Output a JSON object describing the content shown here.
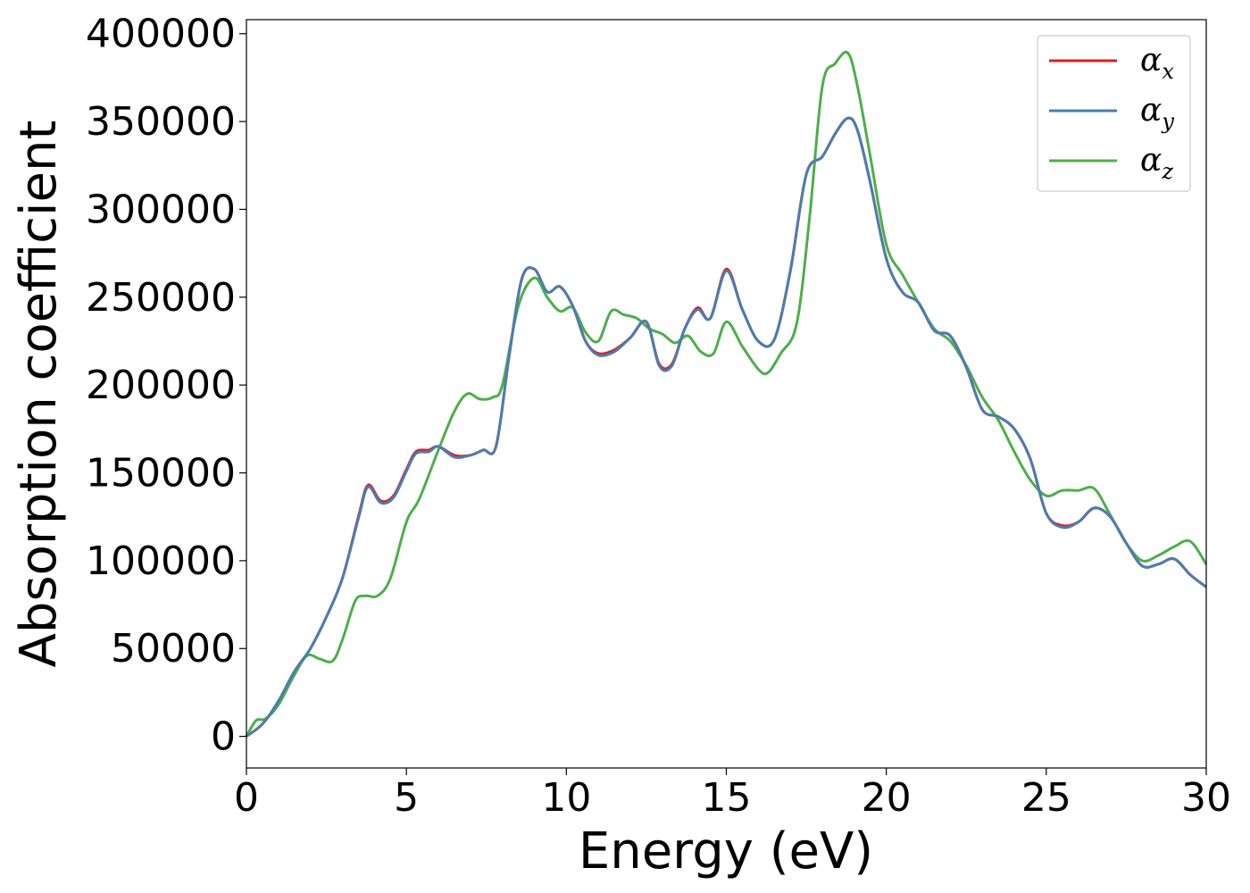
{
  "chart_data": {
    "type": "line",
    "xlabel": "Energy (eV)",
    "ylabel": "Absorption coefficient",
    "xlim": [
      0,
      30
    ],
    "ylim": [
      -18000,
      408000
    ],
    "xticks": [
      0,
      5,
      10,
      15,
      20,
      25,
      30
    ],
    "xtick_labels": [
      "0",
      "5",
      "10",
      "15",
      "20",
      "25",
      "30"
    ],
    "yticks": [
      0,
      50000,
      100000,
      150000,
      200000,
      250000,
      300000,
      350000,
      400000
    ],
    "ytick_labels": [
      "0",
      "50000",
      "100000",
      "150000",
      "200000",
      "250000",
      "300000",
      "350000",
      "400000"
    ],
    "grid": false,
    "legend_position": "top-right",
    "series": [
      {
        "name": "αx",
        "legend_base": "α",
        "legend_sub": "x",
        "color": "#e41a1c",
        "x": [
          0,
          0.5,
          1,
          1.5,
          2,
          2.5,
          3,
          3.5,
          3.8,
          4.2,
          4.6,
          5,
          5.3,
          5.7,
          6,
          6.5,
          7,
          7.4,
          7.8,
          8.2,
          8.6,
          9,
          9.4,
          9.8,
          10.2,
          10.6,
          11,
          11.5,
          12,
          12.5,
          12.9,
          13.3,
          13.7,
          14.1,
          14.5,
          15,
          15.5,
          16,
          16.5,
          17,
          17.5,
          18,
          18.4,
          18.8,
          19.1,
          19.5,
          20,
          20.5,
          21,
          21.5,
          22,
          22.5,
          23,
          23.5,
          24,
          24.5,
          25,
          25.5,
          26,
          26.5,
          27,
          27.5,
          28,
          28.5,
          29,
          29.5,
          30
        ],
        "y": [
          0,
          7000,
          20000,
          37000,
          50000,
          68000,
          90000,
          125000,
          143000,
          134000,
          137000,
          152000,
          162000,
          163000,
          165000,
          160000,
          160000,
          163000,
          165000,
          215000,
          260000,
          266000,
          253000,
          256000,
          245000,
          225000,
          218000,
          220000,
          227000,
          236000,
          212000,
          212000,
          232000,
          244000,
          238000,
          266000,
          243000,
          225000,
          226000,
          265000,
          320000,
          330000,
          343000,
          352000,
          345000,
          315000,
          272000,
          253000,
          247000,
          231000,
          228000,
          210000,
          186000,
          182000,
          175000,
          158000,
          127000,
          120000,
          122000,
          130000,
          125000,
          110000,
          97000,
          98000,
          101000,
          92000,
          85000
        ]
      },
      {
        "name": "αy",
        "legend_base": "α",
        "legend_sub": "y",
        "color": "#4a7db0",
        "x": [
          0,
          0.5,
          1,
          1.5,
          2,
          2.5,
          3,
          3.5,
          3.8,
          4.2,
          4.6,
          5,
          5.3,
          5.7,
          6,
          6.5,
          7,
          7.4,
          7.8,
          8.2,
          8.6,
          9,
          9.4,
          9.8,
          10.2,
          10.6,
          11,
          11.5,
          12,
          12.5,
          12.9,
          13.3,
          13.7,
          14.1,
          14.5,
          15,
          15.5,
          16,
          16.5,
          17,
          17.5,
          18,
          18.4,
          18.8,
          19.1,
          19.5,
          20,
          20.5,
          21,
          21.5,
          22,
          22.5,
          23,
          23.5,
          24,
          24.5,
          25,
          25.5,
          26,
          26.5,
          27,
          27.5,
          28,
          28.5,
          29,
          29.5,
          30
        ],
        "y": [
          0,
          7000,
          20000,
          37000,
          50000,
          68000,
          90000,
          124000,
          142000,
          133000,
          136000,
          151000,
          161000,
          162000,
          165000,
          159000,
          160000,
          163000,
          165000,
          215000,
          260000,
          266000,
          253000,
          256000,
          245000,
          225000,
          217000,
          219000,
          227000,
          236000,
          211000,
          211000,
          232000,
          243000,
          238000,
          265000,
          243000,
          225000,
          226000,
          265000,
          320000,
          330000,
          343000,
          352000,
          345000,
          315000,
          272000,
          253000,
          247000,
          231000,
          228000,
          210000,
          186000,
          182000,
          175000,
          158000,
          127000,
          119000,
          122000,
          130000,
          125000,
          110000,
          97000,
          98000,
          101000,
          92000,
          85000
        ]
      },
      {
        "name": "αz",
        "legend_base": "α",
        "legend_sub": "z",
        "color": "#4daf4a",
        "x": [
          0,
          0.3,
          0.6,
          1,
          1.5,
          1.9,
          2.3,
          2.7,
          3,
          3.4,
          3.7,
          4.1,
          4.5,
          5,
          5.4,
          6,
          6.5,
          6.9,
          7.3,
          7.7,
          8,
          8.5,
          9,
          9.4,
          9.8,
          10.2,
          10.6,
          11,
          11.4,
          11.8,
          12.2,
          12.6,
          13,
          13.4,
          13.8,
          14.2,
          14.6,
          15,
          15.5,
          16,
          16.3,
          16.7,
          17.2,
          17.6,
          18,
          18.4,
          18.8,
          19.1,
          19.5,
          20,
          20.5,
          21,
          21.5,
          22,
          22.5,
          23,
          23.5,
          24,
          24.5,
          25,
          25.5,
          26,
          26.5,
          27,
          27.5,
          28,
          28.5,
          29,
          29.5,
          30
        ],
        "y": [
          0,
          9000,
          10000,
          18000,
          35000,
          46000,
          44000,
          43000,
          55000,
          77000,
          80000,
          80000,
          90000,
          122000,
          135000,
          163000,
          185000,
          195000,
          192000,
          193000,
          200000,
          245000,
          261000,
          250000,
          242000,
          244000,
          230000,
          225000,
          242000,
          240000,
          238000,
          232000,
          229000,
          224000,
          228000,
          219000,
          218000,
          236000,
          222000,
          209000,
          207000,
          218000,
          235000,
          295000,
          370000,
          383000,
          389000,
          370000,
          330000,
          280000,
          263000,
          247000,
          232000,
          225000,
          211000,
          193000,
          180000,
          162000,
          146000,
          137000,
          140000,
          140000,
          141000,
          126000,
          110000,
          100000,
          103000,
          108000,
          111000,
          98000
        ]
      }
    ]
  }
}
